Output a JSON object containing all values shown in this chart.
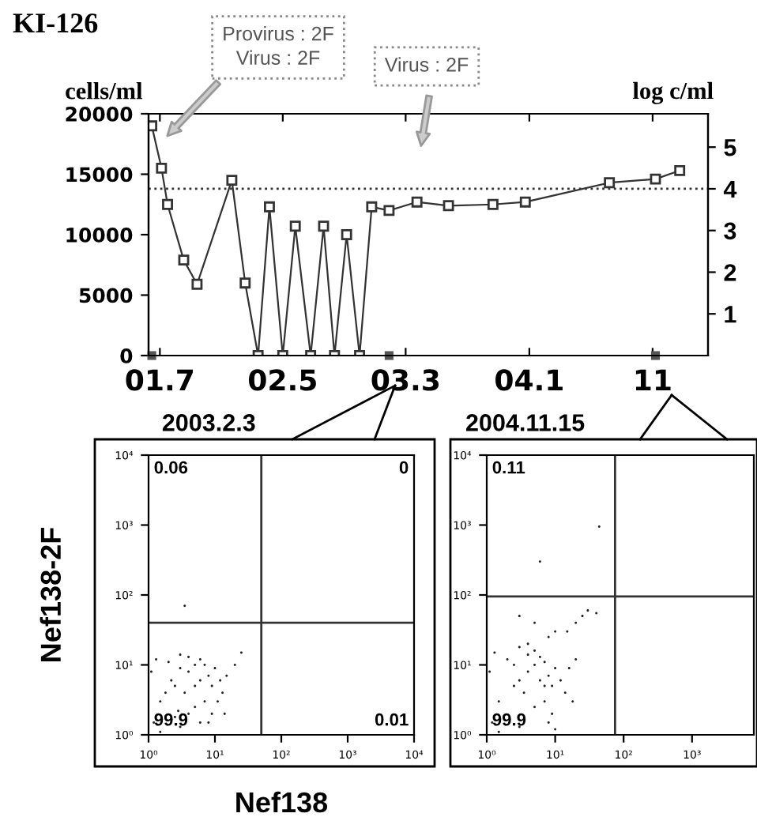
{
  "chart_data": [
    {
      "type": "line",
      "title": "KI-126",
      "ylabel": "cells/ml",
      "y2label": "log c/ml",
      "marker": "square",
      "line_style": "solid",
      "grid": false,
      "x": [
        "2001-06-11",
        "2001-07-05",
        "2001-07-20",
        "2001-08-29",
        "2001-10-01",
        "2001-12-26",
        "2002-01-28",
        "2002-03-01",
        "2002-03-29",
        "2002-05-01",
        "2002-06-01",
        "2002-07-09",
        "2002-08-10",
        "2002-09-06",
        "2002-10-06",
        "2002-11-07",
        "2002-12-07",
        "2003-01-19",
        "2003-03-29",
        "2003-06-15",
        "2003-10-03",
        "2003-12-22",
        "2004-07-17",
        "2004-11-08",
        "2005-01-07"
      ],
      "series": [
        {
          "color": "#333333",
          "values": [
            19000,
            15500,
            12500,
            7900,
            5900,
            14500,
            6000,
            0,
            12300,
            0,
            10700,
            0,
            10700,
            0,
            10000,
            0,
            12300,
            12000,
            12700,
            12400,
            12500,
            12700,
            14300,
            14600,
            15300
          ]
        },
        {
          "type": "scatter",
          "color": "#555555",
          "x": [
            "2001-06-11",
            "2003-01-19",
            "2004-11-08"
          ],
          "values": [
            0,
            0,
            0
          ]
        }
      ],
      "xlim": [
        "2001-06-03",
        "2005-03-18"
      ],
      "xticks": [
        {
          "value": "2001-07-01",
          "label": "01.7"
        },
        {
          "value": "2002-05-01",
          "label": "02.5"
        },
        {
          "value": "2003-03-01",
          "label": "03.3"
        },
        {
          "value": "2004-01-01",
          "label": "04.1"
        },
        {
          "value": "2004-11-01",
          "label": "11"
        }
      ],
      "ylim": [
        0,
        20000
      ],
      "yticks": [
        0,
        5000,
        10000,
        15000,
        20000
      ],
      "y2lim": [
        0,
        5.8
      ],
      "y2ticks": [
        1,
        2,
        3,
        4,
        5
      ],
      "ref_lines": [
        {
          "axis": "y2",
          "value": 4,
          "line_style": "dotted",
          "color": "#333333"
        }
      ],
      "annotations": [
        "Provirus : 2F\nVirus : 2F",
        "Virus : 2F"
      ]
    },
    {
      "type": "scatter",
      "title": "2003.2.3",
      "xlabel": "Nef138",
      "ylabel": "Nef138-2F",
      "log": "xy",
      "marker": "circle",
      "grid": false,
      "x": [
        1.2,
        1.5,
        2,
        2.5,
        3,
        3.5,
        4,
        5,
        6,
        7,
        8,
        9,
        10,
        1.1,
        1.3,
        2,
        3,
        4,
        5,
        6,
        7,
        8,
        9,
        10,
        11,
        12,
        13,
        14,
        1.5,
        2.2,
        3,
        4,
        5,
        6,
        7,
        15,
        20,
        25,
        2.5,
        3.5,
        1.8,
        2.8
      ],
      "series": [
        {
          "color": "#222222",
          "values": [
            1.5,
            3,
            null,
            5,
            1.3,
            4,
            8,
            2.5,
            6,
            3,
            1.5,
            5,
            9,
            8,
            12,
            11,
            14,
            13,
            10,
            12,
            10,
            7,
            2,
            null,
            3,
            6,
            4,
            2,
            1.1,
            6,
            9,
            2,
            5,
            1.5,
            null,
            7,
            10,
            15,
            1.8,
            70,
            4,
            2.2
          ]
        }
      ],
      "xlim": [
        1,
        10000
      ],
      "xticks": [
        {
          "value": 1,
          "label": "10⁰"
        },
        {
          "value": 10,
          "label": "10¹"
        },
        {
          "value": 100,
          "label": "10²"
        },
        {
          "value": 1000,
          "label": "10³"
        },
        {
          "value": 10000,
          "label": "10⁴"
        }
      ],
      "ylim": [
        1,
        10000
      ],
      "yticks": [
        {
          "value": 1,
          "label": "10⁰"
        },
        {
          "value": 10,
          "label": "10¹"
        },
        {
          "value": 100,
          "label": "10²"
        },
        {
          "value": 1000,
          "label": "10³"
        },
        {
          "value": 10000,
          "label": "10⁴"
        }
      ],
      "ref_lines": [
        {
          "axis": "x",
          "value": 50,
          "color": "#333333"
        },
        {
          "axis": "y",
          "value": 40,
          "color": "#333333"
        }
      ],
      "annotations": [
        "0.06",
        "0",
        "99.9",
        "0.01"
      ]
    },
    {
      "type": "scatter",
      "title": "2004.11.15",
      "log": "xy",
      "marker": "circle",
      "grid": false,
      "x": [
        1.2,
        1.5,
        2,
        2.5,
        3,
        3.5,
        4,
        5,
        6,
        7,
        8,
        9,
        10,
        1.1,
        1.3,
        2,
        3,
        4,
        5,
        6,
        7,
        8,
        9,
        10,
        12,
        14,
        16,
        18,
        20,
        1.5,
        2.5,
        3,
        5,
        7,
        15,
        20,
        25,
        30,
        40,
        10,
        8,
        5,
        3,
        6,
        44,
        4
      ],
      "series": [
        {
          "color": "#222222",
          "values": [
            1.5,
            3,
            null,
            5,
            1.3,
            4,
            8,
            2.5,
            6,
            3,
            1.5,
            5,
            9,
            8,
            15,
            12,
            18,
            14,
            10,
            13,
            11,
            7,
            2,
            1.2,
            6,
            4,
            9,
            3,
            12,
            1.1,
            10,
            6,
            16,
            5,
            30,
            40,
            50,
            60,
            55,
            30,
            25,
            40,
            50,
            300,
            950,
            20
          ]
        }
      ],
      "xlim": [
        1,
        8000
      ],
      "xticks": [
        {
          "value": 1,
          "label": "10⁰"
        },
        {
          "value": 10,
          "label": "10¹"
        },
        {
          "value": 100,
          "label": "10²"
        },
        {
          "value": 1000,
          "label": "10³"
        }
      ],
      "ylim": [
        1,
        10000
      ],
      "yticks": [
        {
          "value": 1,
          "label": "10⁰"
        },
        {
          "value": 10,
          "label": "10¹"
        },
        {
          "value": 100,
          "label": "10²"
        },
        {
          "value": 1000,
          "label": "10³"
        },
        {
          "value": 10000,
          "label": "10⁴"
        }
      ],
      "ref_lines": [
        {
          "axis": "x",
          "value": 75,
          "color": "#333333"
        },
        {
          "axis": "y",
          "value": 95,
          "color": "#333333"
        }
      ],
      "annotations": [
        "0.11",
        "99.9"
      ]
    }
  ]
}
